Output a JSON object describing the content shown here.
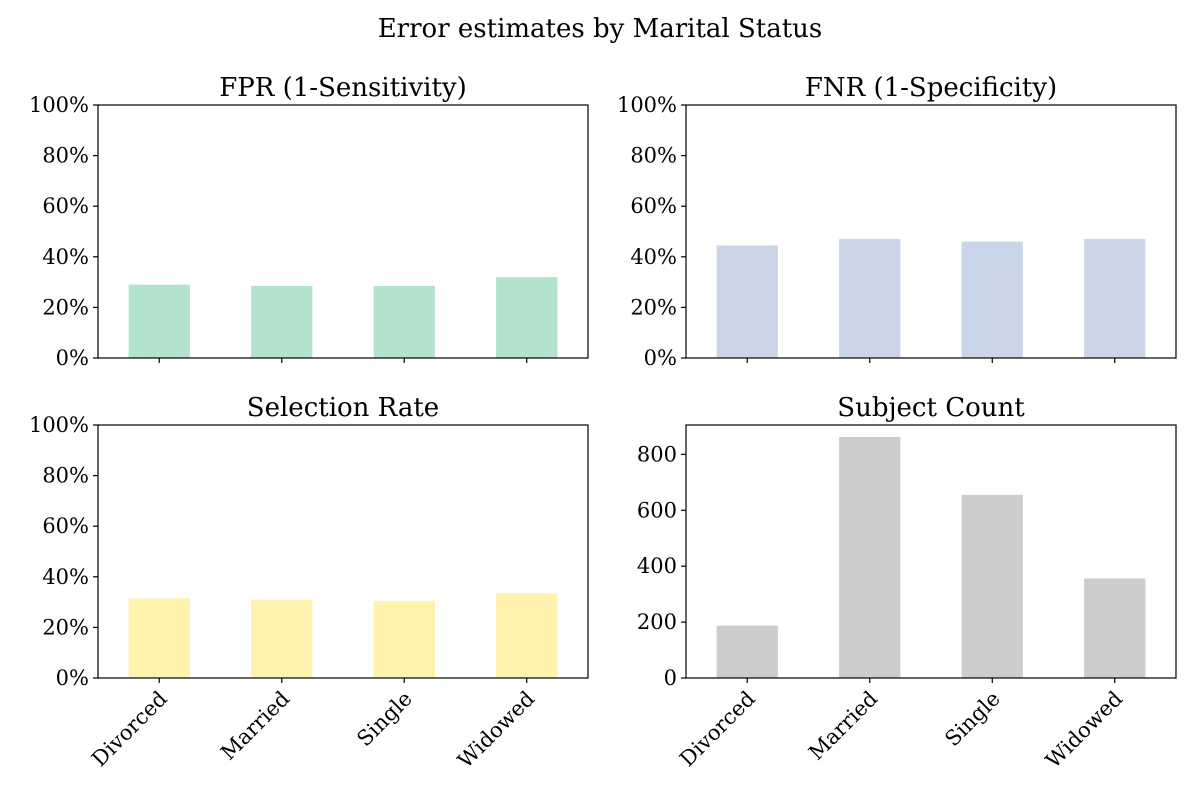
{
  "chart_data": {
    "title": "Error estimates by Marital Status",
    "type": "bar",
    "categories": [
      "Divorced",
      "Married",
      "Single",
      "Widowed"
    ],
    "panels": [
      {
        "title": "FPR (1-Sensitivity)",
        "type": "bar",
        "values": [
          0.29,
          0.285,
          0.285,
          0.32
        ],
        "ylim": [
          0,
          1
        ],
        "yticks": [
          "0%",
          "20%",
          "40%",
          "60%",
          "80%",
          "100%"
        ],
        "color": "#b3e2cd",
        "show_xticklabels": false
      },
      {
        "title": "FNR (1-Specificity)",
        "type": "bar",
        "values": [
          0.445,
          0.47,
          0.46,
          0.47
        ],
        "ylim": [
          0,
          1
        ],
        "yticks": [
          "0%",
          "20%",
          "40%",
          "60%",
          "80%",
          "100%"
        ],
        "color": "#cbd5e8",
        "show_xticklabels": false
      },
      {
        "title": "Selection Rate",
        "type": "bar",
        "values": [
          0.315,
          0.31,
          0.305,
          0.335
        ],
        "ylim": [
          0,
          1
        ],
        "yticks": [
          "0%",
          "20%",
          "40%",
          "60%",
          "80%",
          "100%"
        ],
        "color": "#fff2ae",
        "show_xticklabels": true
      },
      {
        "title": "Subject Count",
        "type": "bar",
        "values": [
          187,
          862,
          655,
          356
        ],
        "ylim": [
          0,
          905
        ],
        "yticks": [
          "0",
          "200",
          "400",
          "600",
          "800"
        ],
        "color": "#cccccc",
        "show_xticklabels": true
      }
    ]
  }
}
